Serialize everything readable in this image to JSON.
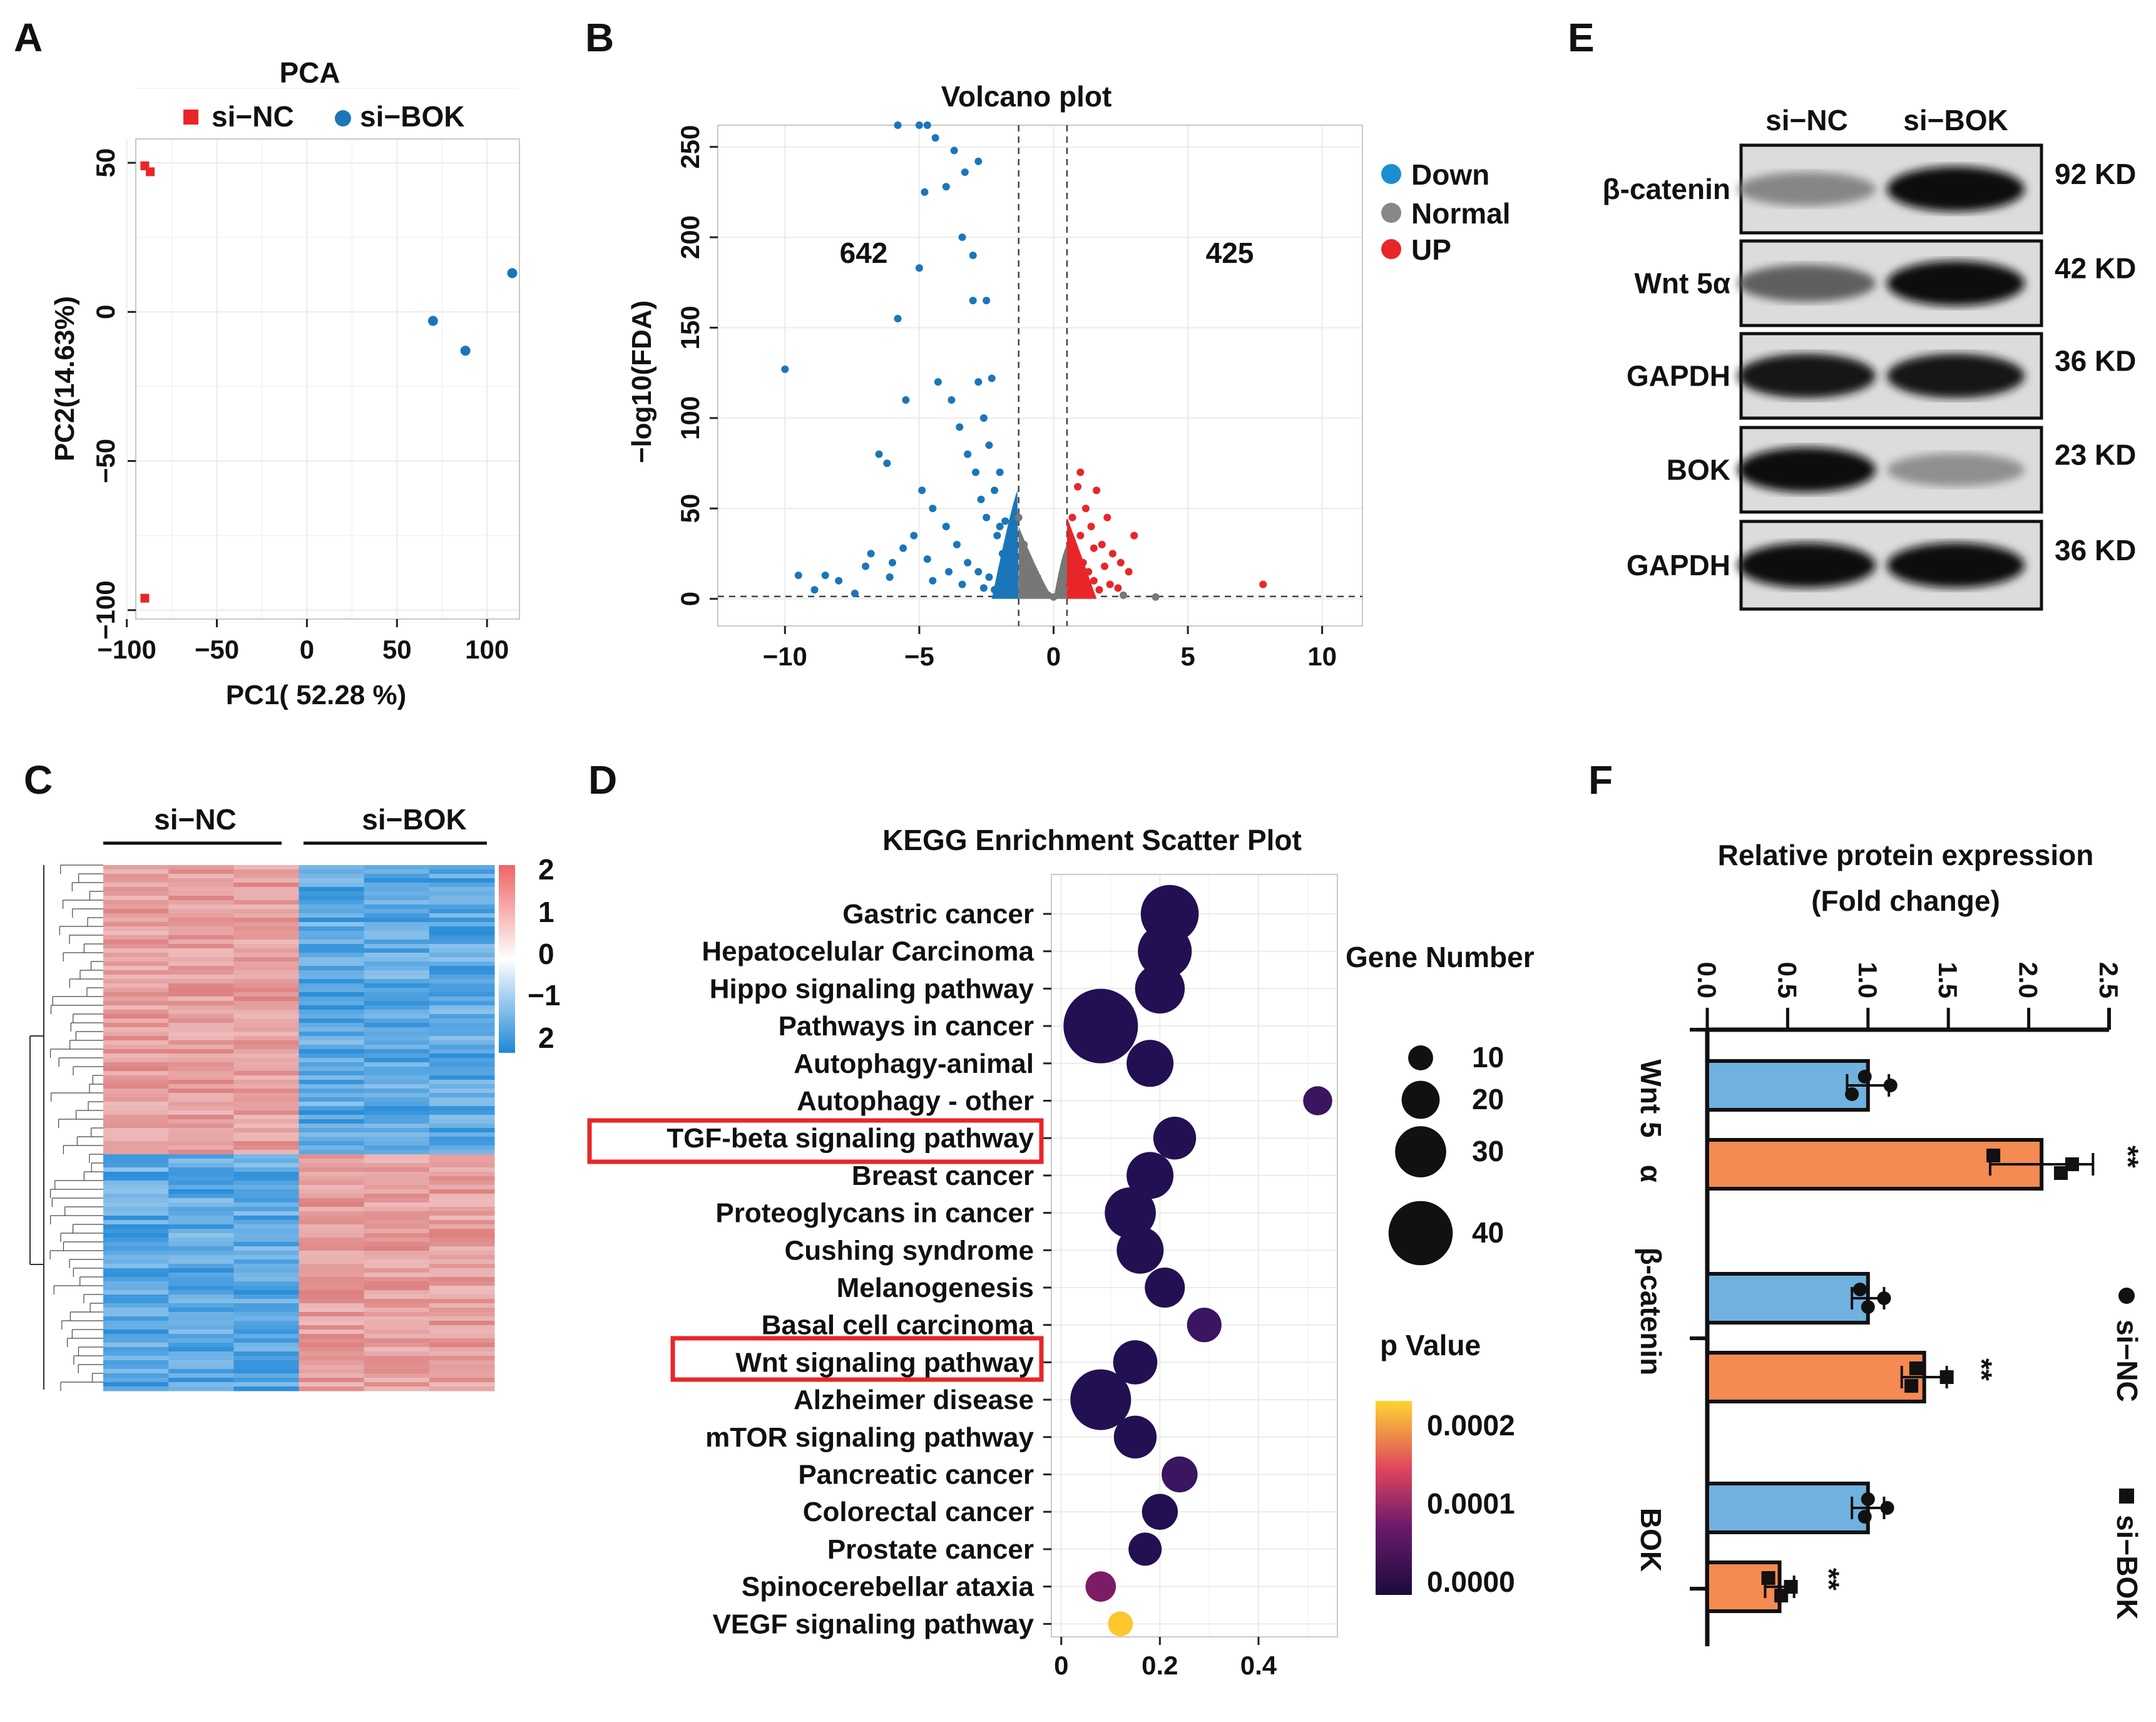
{
  "panel_labels": {
    "A": "A",
    "B": "B",
    "C": "C",
    "D": "D",
    "E": "E",
    "F": "F"
  },
  "colors": {
    "red": "#e8262a",
    "blue": "#1a76b9",
    "gray": "#777777",
    "bar_blue": "#6fb2df",
    "bar_orange": "#f58a52",
    "heat_red": "#f08080",
    "heat_blue": "#1e88d8"
  },
  "chart_data": [
    {
      "id": "A",
      "type": "scatter",
      "title": "PCA",
      "xlabel": "PC1( 52.28 %)",
      "ylabel": "PC2(14.63%)",
      "xlim": [
        -95,
        118
      ],
      "ylim": [
        -103,
        58
      ],
      "xticks": [
        -100,
        -50,
        0,
        50,
        100
      ],
      "yticks": [
        50,
        0,
        -50,
        -100
      ],
      "xtick_labels": [
        "−100",
        "−50",
        "0",
        "50",
        "100"
      ],
      "ytick_labels": [
        "50",
        "0",
        "−50",
        "−100"
      ],
      "legend": [
        {
          "name": "si−NC",
          "marker": "square",
          "color": "#e8262a"
        },
        {
          "name": "si−BOK",
          "marker": "circle",
          "color": "#1a76b9"
        }
      ],
      "series": [
        {
          "name": "si−NC",
          "points": [
            [
              -90,
              49
            ],
            [
              -87,
              47
            ],
            [
              -90,
              -96
            ]
          ]
        },
        {
          "name": "si−BOK",
          "points": [
            [
              70,
              -3
            ],
            [
              88,
              -13
            ],
            [
              114,
              13
            ]
          ]
        }
      ]
    },
    {
      "id": "B",
      "type": "scatter",
      "title": "Volcano plot",
      "xlabel": "",
      "ylabel": "−log10(FDA)",
      "xlim": [
        -12.5,
        11.5
      ],
      "ylim": [
        -15,
        262
      ],
      "xticks": [
        -10,
        -5,
        0,
        5,
        10
      ],
      "yticks": [
        0,
        50,
        100,
        150,
        200,
        250
      ],
      "xtick_labels": [
        "−10",
        "−5",
        "0",
        "5",
        "10"
      ],
      "ytick_labels": [
        "0",
        "50",
        "100",
        "150",
        "200",
        "250"
      ],
      "thresholds": {
        "x": [
          -1.3,
          0.5
        ],
        "y": 1.3
      },
      "legend": [
        {
          "name": "Down",
          "color": "#1a8fd0"
        },
        {
          "name": "Normal",
          "color": "#888888"
        },
        {
          "name": "UP",
          "color": "#e8262a"
        }
      ],
      "annotations": [
        {
          "text": "642",
          "x": -7.5,
          "y": 193
        },
        {
          "text": "425",
          "x": 6.3,
          "y": 193
        }
      ],
      "down_points": [
        [
          -10,
          127
        ],
        [
          -9.5,
          13
        ],
        [
          -8.5,
          13
        ],
        [
          -8.0,
          10
        ],
        [
          -7.0,
          18
        ],
        [
          -6.5,
          80
        ],
        [
          -6.2,
          75
        ],
        [
          -6.0,
          20
        ],
        [
          -5.5,
          110
        ],
        [
          -5.0,
          183
        ],
        [
          -4.8,
          225
        ],
        [
          -4.5,
          10
        ],
        [
          -4.0,
          228
        ],
        [
          -3.7,
          248
        ],
        [
          -3.3,
          236
        ],
        [
          -3.0,
          165
        ],
        [
          -2.8,
          242
        ],
        [
          -2.5,
          165
        ],
        [
          -2.3,
          122
        ],
        [
          -2.0,
          70
        ],
        [
          -1.8,
          43
        ],
        [
          -1.6,
          30
        ],
        [
          -3.4,
          200
        ],
        [
          -3.0,
          190
        ],
        [
          -2.8,
          120
        ],
        [
          -2.6,
          100
        ],
        [
          -2.4,
          85
        ],
        [
          -2.2,
          60
        ],
        [
          -2.0,
          40
        ],
        [
          -1.9,
          25
        ],
        [
          -1.7,
          20
        ],
        [
          -1.5,
          10
        ],
        [
          -5.8,
          155
        ],
        [
          -4.3,
          120
        ],
        [
          -3.8,
          110
        ],
        [
          -3.5,
          95
        ],
        [
          -3.2,
          80
        ],
        [
          -2.9,
          70
        ],
        [
          -2.7,
          55
        ],
        [
          -2.5,
          45
        ],
        [
          -2.1,
          35
        ],
        [
          -4.9,
          60
        ],
        [
          -4.5,
          50
        ],
        [
          -4.0,
          40
        ],
        [
          -3.6,
          30
        ],
        [
          -3.2,
          20
        ],
        [
          -2.8,
          15
        ],
        [
          -2.4,
          12
        ],
        [
          -6.8,
          25
        ],
        [
          -5.2,
          35
        ],
        [
          -4.7,
          22
        ],
        [
          -3.9,
          15
        ],
        [
          -3.4,
          8
        ],
        [
          -2.6,
          6
        ],
        [
          -2.2,
          5
        ],
        [
          -1.9,
          8
        ],
        [
          -1.6,
          5
        ],
        [
          -8.9,
          5
        ],
        [
          -7.4,
          3
        ],
        [
          -6.1,
          12
        ],
        [
          -5.6,
          28
        ],
        [
          -5.8,
          262
        ],
        [
          -5.0,
          262
        ],
        [
          -4.7,
          262
        ],
        [
          -4.4,
          255
        ]
      ],
      "up_points": [
        [
          0.7,
          45
        ],
        [
          0.9,
          62
        ],
        [
          1.0,
          70
        ],
        [
          1.2,
          50
        ],
        [
          1.4,
          40
        ],
        [
          1.6,
          60
        ],
        [
          1.8,
          30
        ],
        [
          2.0,
          45
        ],
        [
          2.2,
          25
        ],
        [
          2.5,
          20
        ],
        [
          2.8,
          15
        ],
        [
          3.0,
          35
        ],
        [
          1.1,
          20
        ],
        [
          1.3,
          15
        ],
        [
          1.5,
          10
        ],
        [
          0.8,
          25
        ],
        [
          0.9,
          10
        ],
        [
          1.7,
          5
        ],
        [
          2.1,
          8
        ],
        [
          2.4,
          6
        ],
        [
          7.8,
          8
        ],
        [
          0.6,
          8
        ],
        [
          1.0,
          35
        ],
        [
          1.5,
          28
        ],
        [
          1.9,
          18
        ]
      ],
      "normal_points": [
        [
          -1.2,
          10
        ],
        [
          -1.0,
          8
        ],
        [
          -0.8,
          5
        ],
        [
          -0.5,
          3
        ],
        [
          -0.2,
          2
        ],
        [
          0.0,
          1
        ],
        [
          0.2,
          3
        ],
        [
          0.4,
          6
        ],
        [
          -0.9,
          15
        ],
        [
          -0.6,
          12
        ],
        [
          0.3,
          10
        ],
        [
          3.8,
          1
        ],
        [
          2.6,
          2
        ],
        [
          -1.1,
          30
        ],
        [
          -1.3,
          45
        ]
      ]
    },
    {
      "id": "C",
      "type": "heatmap",
      "groups": [
        "si−NC",
        "si−BOK"
      ],
      "colorbar": {
        "ticks": [
          "2",
          "1",
          "0",
          "−1",
          "2"
        ],
        "range": [
          -2,
          2
        ]
      },
      "description_rows": {
        "up_in_NC_fraction": 0.55
      }
    },
    {
      "id": "D",
      "type": "scatter",
      "title": "KEGG Enrichment Scatter Plot",
      "xlim": [
        -0.02,
        0.56
      ],
      "xticks": [
        0,
        0.2,
        0.4
      ],
      "xtick_labels": [
        "0",
        "0.2",
        "0.4"
      ],
      "size_legend_title": "Gene Number",
      "size_legend": [
        10,
        20,
        30,
        40
      ],
      "color_legend_title": "p Value",
      "color_legend": [
        "0.0002",
        "0.0001",
        "0.0000"
      ],
      "highlighted": [
        "TGF-beta signaling pathway",
        "Wnt signaling pathway"
      ],
      "pathways": [
        {
          "name": "Gastric cancer",
          "x": 0.22,
          "genes": 33,
          "p": 0.0
        },
        {
          "name": "Hepatocelular Carcinoma",
          "x": 0.21,
          "genes": 30,
          "p": 0.0
        },
        {
          "name": "Hippo signaling pathway",
          "x": 0.2,
          "genes": 27,
          "p": 0.0
        },
        {
          "name": "Pathways in cancer",
          "x": 0.08,
          "genes": 45,
          "p": 0.0
        },
        {
          "name": "Autophagy-animal",
          "x": 0.18,
          "genes": 25,
          "p": 0.0
        },
        {
          "name": "Autophagy - other",
          "x": 0.52,
          "genes": 12,
          "p": 1e-05
        },
        {
          "name": "TGF-beta signaling pathway",
          "x": 0.23,
          "genes": 22,
          "p": 0.0
        },
        {
          "name": "Breast cancer",
          "x": 0.18,
          "genes": 25,
          "p": 0.0
        },
        {
          "name": "Proteoglycans in cancer",
          "x": 0.14,
          "genes": 28,
          "p": 0.0
        },
        {
          "name": "Cushing syndrome",
          "x": 0.16,
          "genes": 25,
          "p": 0.0
        },
        {
          "name": "Melanogenesis",
          "x": 0.21,
          "genes": 20,
          "p": 0.0
        },
        {
          "name": "Basal cell carcinoma",
          "x": 0.29,
          "genes": 16,
          "p": 1e-05
        },
        {
          "name": "Wnt signaling pathway",
          "x": 0.15,
          "genes": 23,
          "p": 0.0
        },
        {
          "name": "Alzheimer disease",
          "x": 0.08,
          "genes": 35,
          "p": 0.0
        },
        {
          "name": "mTOR signaling pathway",
          "x": 0.15,
          "genes": 22,
          "p": 0.0
        },
        {
          "name": "Pancreatic cancer",
          "x": 0.24,
          "genes": 17,
          "p": 1e-05
        },
        {
          "name": "Colorectal cancer",
          "x": 0.2,
          "genes": 17,
          "p": 0.0
        },
        {
          "name": "Prostate cancer",
          "x": 0.17,
          "genes": 15,
          "p": 0.0
        },
        {
          "name": "Spinocerebellar ataxia",
          "x": 0.08,
          "genes": 13,
          "p": 0.0001
        },
        {
          "name": "VEGF signaling pathway",
          "x": 0.12,
          "genes": 9,
          "p": 0.0002
        }
      ]
    },
    {
      "id": "F",
      "type": "bar",
      "orientation": "horizontal",
      "title": "Relative  protein expression",
      "subtitle": "(Fold change)",
      "xlim": [
        0,
        2.5
      ],
      "xticks": [
        0,
        0.5,
        1,
        1.5,
        2,
        2.5
      ],
      "xtick_labels": [
        "0.0",
        "0.5",
        "1.0",
        "1.5",
        "2.0",
        "2.5"
      ],
      "categories": [
        "Wnt 5  α",
        "β-catenin",
        "BOK"
      ],
      "legend": [
        {
          "name": "si−NC",
          "marker": "circle"
        },
        {
          "name": "si−BOK",
          "marker": "square"
        }
      ],
      "series": [
        {
          "name": "si−NC",
          "values": [
            1.0,
            1.0,
            1.0
          ],
          "errors": [
            0.13,
            0.1,
            0.1
          ],
          "points": [
            [
              0.98,
              1.14,
              0.9
            ],
            [
              0.95,
              1.1,
              1.0
            ],
            [
              1.0,
              1.12,
              0.98
            ]
          ]
        },
        {
          "name": "si−BOK",
          "values": [
            2.08,
            1.35,
            0.45
          ],
          "errors": [
            0.32,
            0.14,
            0.09
          ],
          "points": [
            [
              1.78,
              2.27,
              2.2
            ],
            [
              1.3,
              1.49,
              1.27
            ],
            [
              0.38,
              0.52,
              0.46
            ]
          ]
        }
      ],
      "significance": [
        "**",
        "**",
        "**"
      ]
    }
  ],
  "panelA": {
    "title": "PCA",
    "legend_nc": "si−NC",
    "legend_bok": "si−BOK",
    "xlabel": "PC1( 52.28 %)",
    "ylabel": "PC2(14.63%)"
  },
  "panelB": {
    "title": "Volcano plot",
    "ylabel": "−log10(FDA)",
    "count_down": "642",
    "count_up": "425",
    "legend_down": "Down",
    "legend_normal": "Normal",
    "legend_up": "UP"
  },
  "panelC": {
    "group_nc": "si−NC",
    "group_bok": "si−BOK"
  },
  "panelD": {
    "title": "KEGG Enrichment Scatter Plot",
    "size_title": "Gene Number",
    "color_title": "p Value"
  },
  "panelE": {
    "lanes": [
      "si−NC",
      "si−BOK"
    ],
    "bands": [
      {
        "protein": "β-catenin",
        "size": "92 KD"
      },
      {
        "protein": "Wnt 5α",
        "size": "42 KD"
      },
      {
        "protein": "GAPDH",
        "size": "36 KD"
      },
      {
        "protein": "BOK",
        "size": "23 KD"
      },
      {
        "protein": "GAPDH",
        "size": "36 KD"
      }
    ]
  },
  "panelF": {
    "title": "Relative  protein expression",
    "subtitle": "(Fold change)",
    "cat1a": "Wnt 5",
    "cat1b": "α",
    "cat2": "β-catenin",
    "cat3": "BOK",
    "legend_nc": "si−NC",
    "legend_bok": "si−BOK"
  }
}
